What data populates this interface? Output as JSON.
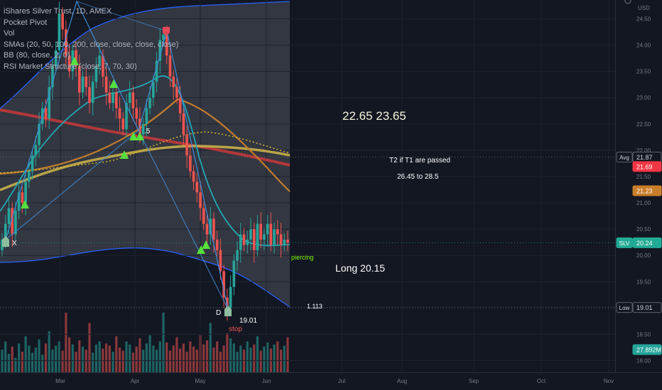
{
  "legend": {
    "title": "iShares Silver Trust, 1D, AMEX",
    "items": [
      "Pocket Pivot",
      "Vol",
      "SMAs (20, 50, 100, 200, close, close, close, close)",
      "BB (80, close, 2, 0)",
      "RSI Market Structure (close, 7, 70, 30)"
    ]
  },
  "currency": "USD",
  "annotations": {
    "targets": "22.65  23.65",
    "t2": "T2 if T1 are passed",
    "t2_range": "26.45 to 28.5",
    "long": "Long 20.15",
    "ratio": "1.113",
    "piercing": "piercing",
    "stop_value": "19.01",
    "stop": "stop",
    "point_d": "D",
    "point_x": "X",
    "fib": ".5"
  },
  "price_labels": [
    {
      "tag": "Avg",
      "value": "21.87",
      "bg": "#131722",
      "fg": "#d1d4dc"
    },
    {
      "tag": "",
      "value": "21.69",
      "bg": "#f23645",
      "fg": "#ffffff"
    },
    {
      "tag": "",
      "value": "21.23",
      "bg": "#c87e29",
      "fg": "#ffffff"
    },
    {
      "tag": "SLV",
      "value": "20.24",
      "bg": "#22ab94",
      "fg": "#ffffff"
    },
    {
      "tag": "Low",
      "value": "19.01",
      "bg": "#131722",
      "fg": "#d1d4dc"
    },
    {
      "tag": "",
      "value": "27.892M",
      "bg": "#26a69a",
      "fg": "#ffffff"
    }
  ],
  "colors": {
    "up": "#26a69a",
    "down": "#ef5350",
    "bb_fill": "#3a3d48",
    "bb_line": "#2962ff",
    "sma20": "#22a7b5",
    "sma50": "#c27c2c",
    "sma100": "#c9b04a",
    "sma200": "#c0393b",
    "pattern": "#3d8bd6",
    "arrow": "#55e03c"
  },
  "chart_data": {
    "type": "candlestick",
    "symbol": "SLV",
    "interval": "1D",
    "y_ticks": [
      "24.50",
      "24.00",
      "23.50",
      "23.00",
      "22.50",
      "22.00",
      "21.50",
      "21.00",
      "20.50",
      "20.00",
      "19.50",
      "19.00",
      "18.50",
      "18.00"
    ],
    "x_ticks": [
      "Mar",
      "Apr",
      "May",
      "Jun",
      "Jul",
      "Aug",
      "Sep",
      "Oct",
      "Nov"
    ],
    "ylim": [
      17.9,
      24.6
    ],
    "candles_close": [
      20.3,
      20.6,
      20.9,
      20.4,
      20.85,
      21.2,
      21.0,
      21.4,
      21.6,
      21.9,
      22.1,
      22.5,
      22.8,
      22.6,
      23.2,
      23.6,
      23.9,
      24.6,
      24.3,
      23.8,
      23.5,
      23.9,
      23.6,
      23.1,
      23.4,
      23.2,
      22.9,
      23.3,
      23.6,
      23.8,
      23.4,
      23.1,
      22.9,
      23.1,
      22.8,
      22.6,
      22.4,
      22.9,
      23.1,
      22.8,
      22.6,
      22.3,
      22.5,
      22.8,
      23.0,
      23.3,
      23.7,
      24.1,
      24.2,
      23.8,
      23.4,
      23.2,
      23.0,
      22.7,
      22.3,
      21.9,
      21.6,
      21.4,
      21.2,
      20.9,
      20.6,
      20.4,
      20.7,
      20.3,
      20.1,
      19.7,
      19.2,
      19.0,
      19.4,
      19.9,
      20.1,
      20.4,
      20.2,
      20.3,
      20.5,
      20.1,
      20.6,
      20.3,
      20.4,
      20.6,
      20.2,
      20.5,
      20.4,
      20.2,
      20.3,
      20.24
    ],
    "sma_200": [
      22.6,
      21.87
    ],
    "sma_100_last": 21.87,
    "sma_50_last": 21.23,
    "swing_points": [
      {
        "label": "X",
        "price": 20.4
      },
      {
        "label": "D",
        "price": 19.01
      }
    ],
    "volume_last": "27.892M"
  }
}
